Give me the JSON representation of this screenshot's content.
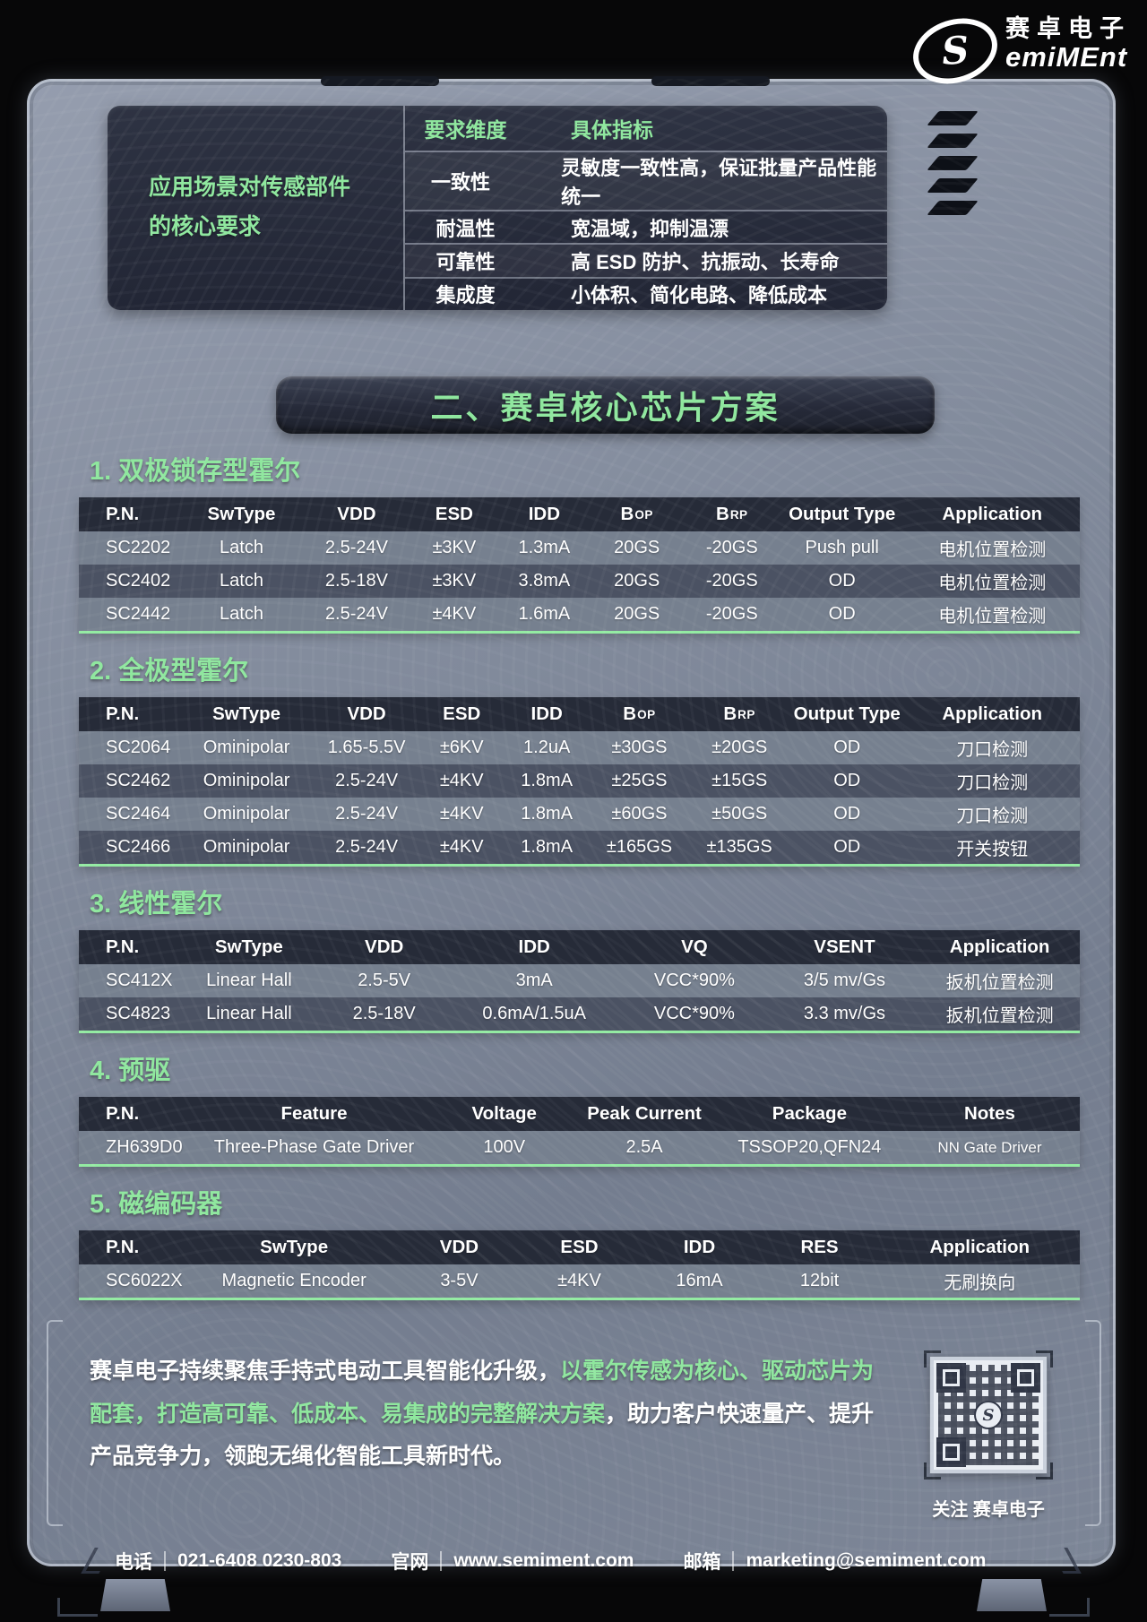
{
  "logo": {
    "emblem_letter": "S",
    "brand_cn": "赛卓电子",
    "brand_en": "emiMEnt"
  },
  "requirements": {
    "side_label_line1": "应用场景对传感部件",
    "side_label_line2": "的核心要求",
    "col_dimension": "要求维度",
    "col_spec": "具体指标",
    "rows": [
      {
        "dimension": "一致性",
        "spec": "灵敏度一致性高，保证批量产品性能统一"
      },
      {
        "dimension": "耐温性",
        "spec": "宽温域，抑制温漂"
      },
      {
        "dimension": "可靠性",
        "spec": "高 ESD 防护、抗振动、长寿命"
      },
      {
        "dimension": "集成度",
        "spec": "小体积、简化电路、降低成本"
      }
    ]
  },
  "banner": {
    "title": "二、赛卓核心芯片方案"
  },
  "sections": [
    {
      "title": "1. 双极锁存型霍尔",
      "headers": [
        "P.N.",
        "SwType",
        "VDD",
        "ESD",
        "IDD",
        "Bop",
        "Brp",
        "Output Type",
        "Application"
      ],
      "rows": [
        [
          "SC2202",
          "Latch",
          "2.5-24V",
          "±3KV",
          "1.3mA",
          "20GS",
          "-20GS",
          "Push pull",
          "电机位置检测"
        ],
        [
          "SC2402",
          "Latch",
          "2.5-18V",
          "±3KV",
          "3.8mA",
          "20GS",
          "-20GS",
          "OD",
          "电机位置检测"
        ],
        [
          "SC2442",
          "Latch",
          "2.5-24V",
          "±4KV",
          "1.6mA",
          "20GS",
          "-20GS",
          "OD",
          "电机位置检测"
        ]
      ]
    },
    {
      "title": "2. 全极型霍尔",
      "headers": [
        "P.N.",
        "SwType",
        "VDD",
        "ESD",
        "IDD",
        "Bop",
        "Brp",
        "Output Type",
        "Application"
      ],
      "rows": [
        [
          "SC2064",
          "Ominipolar",
          "1.65-5.5V",
          "±6KV",
          "1.2uA",
          "±30GS",
          "±20GS",
          "OD",
          "刀口检测"
        ],
        [
          "SC2462",
          "Ominipolar",
          "2.5-24V",
          "±4KV",
          "1.8mA",
          "±25GS",
          "±15GS",
          "OD",
          "刀口检测"
        ],
        [
          "SC2464",
          "Ominipolar",
          "2.5-24V",
          "±4KV",
          "1.8mA",
          "±60GS",
          "±50GS",
          "OD",
          "刀口检测"
        ],
        [
          "SC2466",
          "Ominipolar",
          "2.5-24V",
          "±4KV",
          "1.8mA",
          "±165GS",
          "±135GS",
          "OD",
          "开关按钮"
        ]
      ]
    },
    {
      "title": "3. 线性霍尔",
      "headers": [
        "P.N.",
        "SwType",
        "VDD",
        "IDD",
        "VQ",
        "VSENT",
        "Application"
      ],
      "rows": [
        [
          "SC412X",
          "Linear Hall",
          "2.5-5V",
          "3mA",
          "VCC*90%",
          "3/5 mv/Gs",
          "扳机位置检测"
        ],
        [
          "SC4823",
          "Linear Hall",
          "2.5-18V",
          "0.6mA/1.5uA",
          "VCC*90%",
          "3.3 mv/Gs",
          "扳机位置检测"
        ]
      ]
    },
    {
      "title": "4. 预驱",
      "headers": [
        "P.N.",
        "Feature",
        "Voltage",
        "Peak Current",
        "Package",
        "Notes"
      ],
      "rows": [
        [
          "ZH639D0",
          "Three-Phase Gate Driver",
          "100V",
          "2.5A",
          "TSSOP20,QFN24",
          "NN Gate Driver"
        ]
      ]
    },
    {
      "title": "5. 磁编码器",
      "headers": [
        "P.N.",
        "SwType",
        "VDD",
        "ESD",
        "IDD",
        "RES",
        "Application"
      ],
      "rows": [
        [
          "SC6022X",
          "Magnetic Encoder",
          "3-5V",
          "±4KV",
          "16mA",
          "12bit",
          "无刷换向"
        ]
      ]
    }
  ],
  "summary": {
    "lead": "赛卓电子持续聚焦手持式电动工具智能化升级，",
    "highlight": "以霍尔传感为核心、驱动芯片为配套，打造高可靠、低成本、易集成的完整解决方案",
    "tail": "，助力客户快速量产、提升产品竞争力，领跑无绳化智能工具新时代。",
    "qr_caption": "关注 赛卓电子"
  },
  "footer": {
    "items": [
      {
        "label": "电话",
        "value": "021-6408 0230-803"
      },
      {
        "label": "官网",
        "value": "www.semiment.com"
      },
      {
        "label": "邮箱",
        "value": "marketing@semiment.com"
      }
    ]
  },
  "colors": {
    "accent_green": "#8FE79E",
    "green_rule": "#93EBA2",
    "table_header_bg": "#262B38",
    "row_light": "#76808F",
    "row_dark": "#4B5263",
    "dark_box": "#262A39",
    "panel_gray": "#7E8798"
  }
}
